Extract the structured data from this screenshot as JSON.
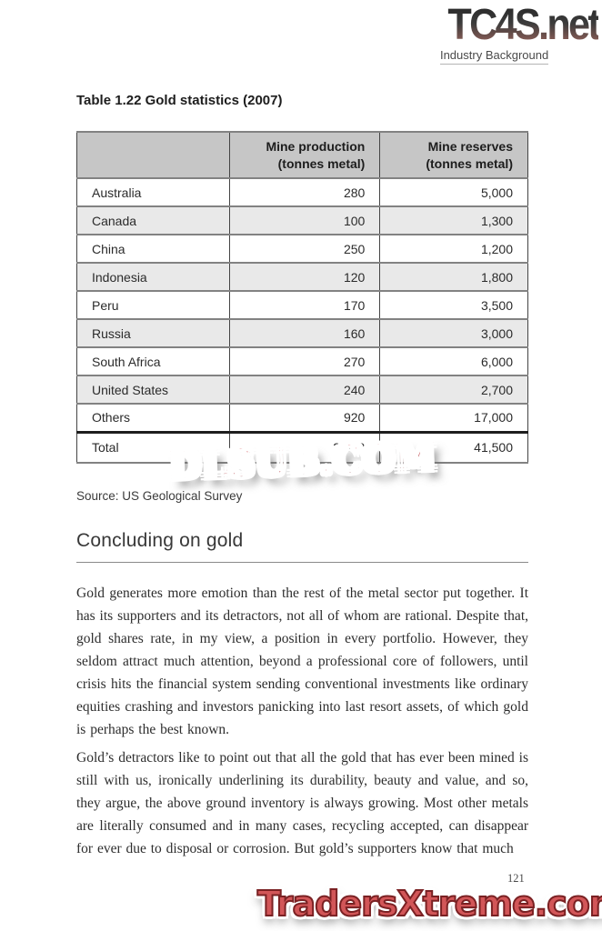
{
  "page": {
    "logo_text": "TC4S.net",
    "logo_subtitle": "Industry Background",
    "page_number": "121"
  },
  "table": {
    "title": "Table 1.22 Gold statistics (2007)",
    "columns": {
      "production": [
        "Mine production",
        "(tonnes metal)"
      ],
      "reserves": [
        "Mine reserves",
        "(tonnes metal)"
      ]
    },
    "rows": [
      {
        "country": "Australia",
        "production": "280",
        "reserves": "5,000"
      },
      {
        "country": "Canada",
        "production": "100",
        "reserves": "1,300"
      },
      {
        "country": "China",
        "production": "250",
        "reserves": "1,200"
      },
      {
        "country": "Indonesia",
        "production": "120",
        "reserves": "1,800"
      },
      {
        "country": "Peru",
        "production": "170",
        "reserves": "3,500"
      },
      {
        "country": "Russia",
        "production": "160",
        "reserves": "3,000"
      },
      {
        "country": "South Africa",
        "production": "270",
        "reserves": "6,000"
      },
      {
        "country": "United States",
        "production": "240",
        "reserves": "2,700"
      },
      {
        "country": "Others",
        "production": "920",
        "reserves": "17,000"
      }
    ],
    "total_row": {
      "country": "Total",
      "production": "2,510",
      "reserves": "41,500"
    },
    "source": "Source: US Geological Survey"
  },
  "section": {
    "heading": "Concluding on gold",
    "paragraphs": [
      "Gold generates more emotion than the rest of the metal sector put together. It has its supporters and its detractors, not all of whom are rational. Despite that, gold shares rate, in my view, a position in every portfolio. However, they seldom attract much attention, beyond a professional core of followers, until crisis hits the financial system sending conventional investments like ordinary equities crashing and investors panicking into last resort assets, of which gold is perhaps the best known.",
      "Gold’s detractors like to point out that all the gold that has ever been mined is still with us, ironically underlining its durability, beauty and value, and so, they argue, the above ground inventory is always growing. Most other metals are literally consumed and in many cases, recycling accepted, can disappear for ever due to disposal or corrosion. But gold’s supporters know that much"
    ]
  },
  "watermarks": {
    "table_overlay": "DLSUB.COM",
    "footer": "TradersXtreme.com"
  },
  "colors": {
    "logo_gradient_top": "#262626",
    "logo_gradient_bottom": "#96625a",
    "watermark_red": "#c5242c",
    "footer_watermark_fill": "#d25658",
    "footer_watermark_outline": "#7a2123",
    "table_header_bg": "#c6c6c6",
    "table_alt_row_bg": "#e9e9e9",
    "text": "#2e2e2e"
  }
}
